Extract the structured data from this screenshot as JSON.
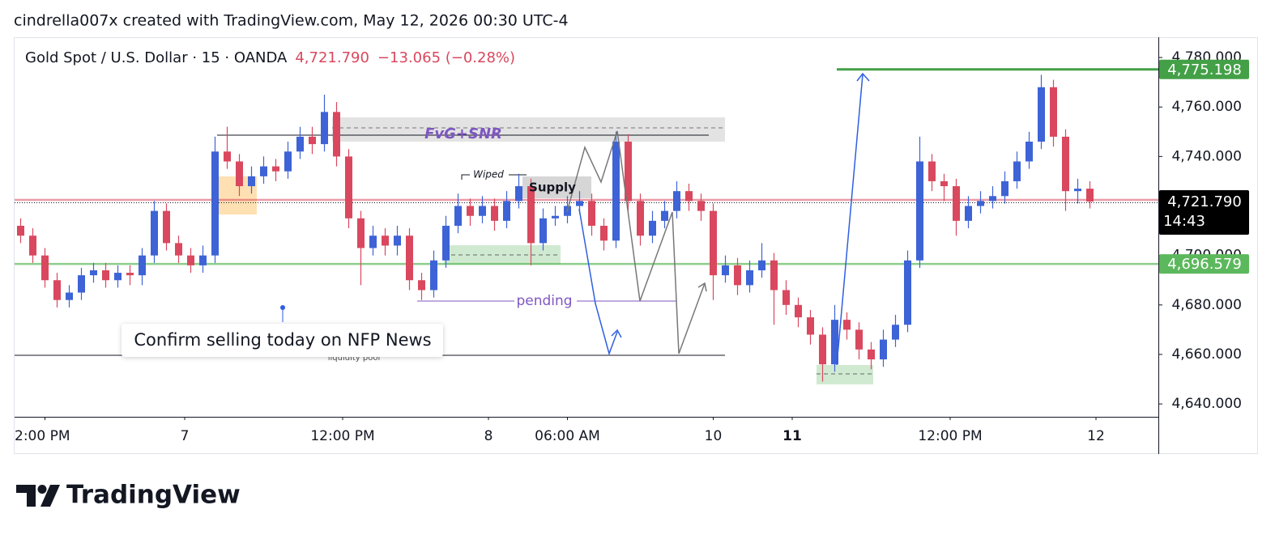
{
  "header": "cindrella007x created with TradingView.com, May 12, 2026 00:30 UTC-4",
  "brand": "TradingView",
  "chart_data": {
    "type": "candlestick",
    "title": "Gold Spot / U.S. Dollar · 15 · OANDA",
    "change_label": "−13.065 (−0.28%)",
    "up_color": "#3d63d6",
    "down_color": "#d9485e",
    "ylim": [
      4634.8,
      4788.2
    ],
    "yticks": [
      {
        "value": 4640,
        "label": "4,640.000"
      },
      {
        "value": 4660,
        "label": "4,660.000"
      },
      {
        "value": 4680,
        "label": "4,680.000"
      },
      {
        "value": 4700,
        "label": "4,700.000"
      },
      {
        "value": 4720,
        "label": "4,720.000"
      },
      {
        "value": 4740,
        "label": "4,740.000"
      },
      {
        "value": 4760,
        "label": "4,760.000"
      },
      {
        "value": 4780,
        "label": "4,780.000"
      }
    ],
    "xticks": [
      {
        "value": 2,
        "label": "2:00 PM"
      },
      {
        "value": 13.5,
        "label": "7"
      },
      {
        "value": 26.5,
        "label": "12:00 PM"
      },
      {
        "value": 38.5,
        "label": "8"
      },
      {
        "value": 45,
        "label": "06:00 AM"
      },
      {
        "value": 57,
        "label": "10"
      },
      {
        "value": 63.5,
        "label": "11",
        "bold": true
      },
      {
        "value": 76.5,
        "label": "12:00 PM"
      },
      {
        "value": 88.5,
        "label": "12"
      }
    ],
    "last_price": {
      "value": 4721.79,
      "label": "4,721.790",
      "countdown": "14:43",
      "color": "#d9485e"
    },
    "price_lines": [
      {
        "value": 4775.198,
        "label": "4,775.198",
        "color": "#43a047"
      },
      {
        "value": 4696.579,
        "label": "4,696.579",
        "color": "#5cb85c"
      }
    ],
    "annotations": {
      "fvg": "FvG+SNR",
      "wiped": "Wiped",
      "supply": "Supply",
      "pending": "pending",
      "note": "Confirm selling today on NFP News",
      "liquidity": "liquidity pool"
    },
    "ohlc": [
      [
        4712,
        4715,
        4705,
        4708
      ],
      [
        4708,
        4711,
        4697,
        4700
      ],
      [
        4700,
        4703,
        4687,
        4690
      ],
      [
        4690,
        4693,
        4679,
        4682
      ],
      [
        4682,
        4688,
        4679,
        4685
      ],
      [
        4685,
        4695,
        4682,
        4692
      ],
      [
        4692,
        4697,
        4689,
        4694
      ],
      [
        4694,
        4697,
        4687,
        4690
      ],
      [
        4690,
        4696,
        4687,
        4693
      ],
      [
        4693,
        4696,
        4688,
        4692
      ],
      [
        4692,
        4703,
        4688,
        4700
      ],
      [
        4700,
        4722,
        4697,
        4718
      ],
      [
        4718,
        4721,
        4702,
        4705
      ],
      [
        4705,
        4708,
        4697,
        4700
      ],
      [
        4700,
        4703,
        4693,
        4696
      ],
      [
        4696,
        4704,
        4693,
        4700
      ],
      [
        4700,
        4748,
        4697,
        4742
      ],
      [
        4742,
        4752,
        4735,
        4738
      ],
      [
        4738,
        4741,
        4724,
        4728
      ],
      [
        4728,
        4736,
        4725,
        4732
      ],
      [
        4732,
        4740,
        4729,
        4736
      ],
      [
        4736,
        4739,
        4730,
        4734
      ],
      [
        4734,
        4746,
        4731,
        4742
      ],
      [
        4742,
        4752,
        4739,
        4748
      ],
      [
        4748,
        4752,
        4741,
        4745
      ],
      [
        4745,
        4765,
        4742,
        4758
      ],
      [
        4758,
        4762,
        4736,
        4740
      ],
      [
        4740,
        4743,
        4711,
        4715
      ],
      [
        4715,
        4718,
        4688,
        4703
      ],
      [
        4703,
        4712,
        4700,
        4708
      ],
      [
        4708,
        4711,
        4700,
        4704
      ],
      [
        4704,
        4712,
        4700,
        4708
      ],
      [
        4708,
        4711,
        4686,
        4690
      ],
      [
        4690,
        4693,
        4682,
        4686
      ],
      [
        4686,
        4702,
        4683,
        4698
      ],
      [
        4698,
        4716,
        4695,
        4712
      ],
      [
        4712,
        4725,
        4709,
        4720
      ],
      [
        4720,
        4723,
        4712,
        4716
      ],
      [
        4716,
        4724,
        4713,
        4720
      ],
      [
        4720,
        4723,
        4710,
        4714
      ],
      [
        4714,
        4726,
        4711,
        4722
      ],
      [
        4722,
        4733,
        4719,
        4728
      ],
      [
        4728,
        4731,
        4696,
        4705
      ],
      [
        4705,
        4719,
        4702,
        4715
      ],
      [
        4715,
        4720,
        4712,
        4716
      ],
      [
        4716,
        4724,
        4713,
        4720
      ],
      [
        4720,
        4726,
        4717,
        4722
      ],
      [
        4722,
        4725,
        4708,
        4712
      ],
      [
        4712,
        4715,
        4702,
        4706
      ],
      [
        4706,
        4750,
        4703,
        4746
      ],
      [
        4746,
        4749,
        4718,
        4722
      ],
      [
        4722,
        4725,
        4704,
        4708
      ],
      [
        4708,
        4718,
        4705,
        4714
      ],
      [
        4714,
        4722,
        4711,
        4718
      ],
      [
        4718,
        4730,
        4715,
        4726
      ],
      [
        4726,
        4729,
        4718,
        4722
      ],
      [
        4722,
        4725,
        4714,
        4718
      ],
      [
        4718,
        4721,
        4682,
        4692
      ],
      [
        4692,
        4700,
        4689,
        4696
      ],
      [
        4696,
        4699,
        4684,
        4688
      ],
      [
        4688,
        4698,
        4685,
        4694
      ],
      [
        4694,
        4705,
        4691,
        4698
      ],
      [
        4698,
        4701,
        4672,
        4686
      ],
      [
        4686,
        4690,
        4676,
        4680
      ],
      [
        4680,
        4683,
        4671,
        4675
      ],
      [
        4675,
        4678,
        4664,
        4668
      ],
      [
        4668,
        4671,
        4649,
        4656
      ],
      [
        4656,
        4680,
        4653,
        4674
      ],
      [
        4674,
        4677,
        4666,
        4670
      ],
      [
        4670,
        4673,
        4658,
        4662
      ],
      [
        4662,
        4665,
        4654,
        4658
      ],
      [
        4658,
        4670,
        4655,
        4666
      ],
      [
        4666,
        4676,
        4663,
        4672
      ],
      [
        4672,
        4702,
        4669,
        4698
      ],
      [
        4698,
        4748,
        4695,
        4738
      ],
      [
        4738,
        4741,
        4726,
        4730
      ],
      [
        4730,
        4733,
        4722,
        4728
      ],
      [
        4728,
        4731,
        4708,
        4714
      ],
      [
        4714,
        4724,
        4711,
        4720
      ],
      [
        4720,
        4726,
        4717,
        4722
      ],
      [
        4722,
        4728,
        4719,
        4724
      ],
      [
        4724,
        4734,
        4721,
        4730
      ],
      [
        4730,
        4742,
        4727,
        4738
      ],
      [
        4738,
        4750,
        4735,
        4746
      ],
      [
        4746,
        4773,
        4743,
        4768
      ],
      [
        4768,
        4771,
        4744,
        4748
      ],
      [
        4748,
        4751,
        4718,
        4726
      ],
      [
        4726,
        4731,
        4721,
        4727
      ],
      [
        4727,
        4730,
        4719,
        4721.79
      ]
    ]
  }
}
